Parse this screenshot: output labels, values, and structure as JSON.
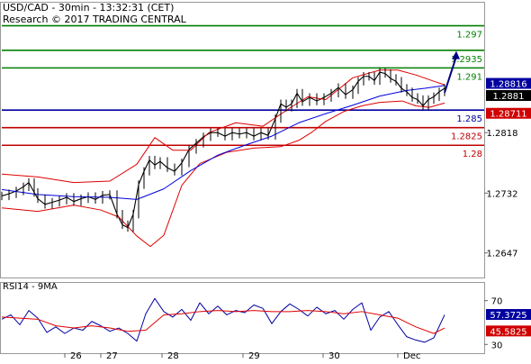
{
  "header": {
    "title": "USD/CAD - 30min - 13:32:31 (CET)",
    "credit": "Research © 2017 TRADING CENTRAL"
  },
  "rsi_label": "RSI14 - 9MA",
  "colors": {
    "resistance": "#008000",
    "pivot": "#0000a0",
    "support": "#c00000",
    "price": "#000000",
    "bollinger": "#e00000",
    "moving_average": "#0000e0",
    "forecast_arrow": "#000080",
    "rsi": "#0000a0",
    "rsi_ma": "#e00000",
    "label_bg_dark": "#000000",
    "label_bg_blue": "#0000a0",
    "label_bg_red": "#d00000"
  },
  "chart_data": [
    {
      "type": "line",
      "title": "USD/CAD - 30min - 13:32:31 (CET)",
      "x_tick_labels": [
        "26",
        "27",
        "28",
        "29",
        "30",
        "Dec"
      ],
      "y_tick_labels": [
        "1.2818",
        "1.2732",
        "1.2647"
      ],
      "ylim": [
        1.2612,
        1.3004
      ],
      "grid": false,
      "levels": [
        {
          "value": 1.297,
          "label": "1.297",
          "kind": "resistance"
        },
        {
          "value": 1.2935,
          "label": "1.2935",
          "kind": "resistance"
        },
        {
          "value": 1.291,
          "label": "1.291",
          "kind": "resistance"
        },
        {
          "value": 1.285,
          "label": "1.285",
          "kind": "pivot"
        },
        {
          "value": 1.2825,
          "label": "1.2825",
          "kind": "support"
        },
        {
          "value": 1.28,
          "label": "1.28",
          "kind": "support"
        }
      ],
      "price_tags": [
        {
          "value": 1.28816,
          "label": "1.28816",
          "style": "blue"
        },
        {
          "value": 1.2881,
          "label": "1.2881",
          "style": "dark"
        },
        {
          "value": 1.28711,
          "label": "1.28711",
          "style": "red"
        }
      ],
      "series": [
        {
          "role": "price",
          "x": [
            0,
            8,
            16,
            24,
            30,
            36,
            40,
            48,
            56,
            64,
            72,
            80,
            88,
            96,
            104,
            112,
            120,
            128,
            134,
            140,
            146,
            152,
            158,
            164,
            170,
            176,
            184,
            192,
            200,
            208,
            216,
            224,
            232,
            240,
            248,
            256,
            264,
            272,
            280,
            288,
            296,
            304,
            310,
            316,
            322,
            328,
            334,
            342,
            350,
            358,
            366,
            374,
            382,
            390,
            396,
            402,
            408,
            414,
            420,
            426,
            432,
            438,
            444,
            450,
            456,
            462,
            468,
            474,
            480,
            486,
            492
          ],
          "y": [
            1.2728,
            1.2731,
            1.2735,
            1.2741,
            1.2747,
            1.2733,
            1.2724,
            1.2716,
            1.2719,
            1.2722,
            1.2726,
            1.272,
            1.2724,
            1.2727,
            1.2723,
            1.2729,
            1.273,
            1.2702,
            1.2687,
            1.2683,
            1.2702,
            1.2744,
            1.2763,
            1.2779,
            1.2772,
            1.2777,
            1.2768,
            1.2763,
            1.2775,
            1.2794,
            1.2803,
            1.2812,
            1.2818,
            1.2818,
            1.2813,
            1.2818,
            1.2816,
            1.2818,
            1.2813,
            1.2818,
            1.2814,
            1.2838,
            1.2859,
            1.2854,
            1.2859,
            1.2874,
            1.2862,
            1.2868,
            1.2863,
            1.2868,
            1.2874,
            1.2882,
            1.2872,
            1.2879,
            1.2891,
            1.2898,
            1.2898,
            1.2892,
            1.2904,
            1.2902,
            1.2895,
            1.2891,
            1.2881,
            1.2876,
            1.2868,
            1.2865,
            1.2856,
            1.2865,
            1.2869,
            1.2876,
            1.2881
          ]
        },
        {
          "role": "bollinger_upper",
          "x": [
            0,
            40,
            80,
            120,
            150,
            170,
            190,
            210,
            230,
            260,
            290,
            320,
            340,
            360,
            390,
            420,
            440,
            460,
            480,
            492
          ],
          "y": [
            1.2759,
            1.2755,
            1.2747,
            1.2749,
            1.2773,
            1.2811,
            1.2793,
            1.2793,
            1.2818,
            1.2832,
            1.2827,
            1.2853,
            1.2869,
            1.2865,
            1.2896,
            1.2907,
            1.2907,
            1.29,
            1.2891,
            1.2886
          ]
        },
        {
          "role": "bollinger_lower",
          "x": [
            0,
            40,
            80,
            110,
            130,
            150,
            165,
            180,
            200,
            220,
            250,
            280,
            310,
            330,
            345,
            360,
            380,
            400,
            420,
            445,
            460,
            475,
            492
          ],
          "y": [
            1.2711,
            1.2706,
            1.2715,
            1.2708,
            1.2698,
            1.2671,
            1.2656,
            1.2672,
            1.2743,
            1.2774,
            1.279,
            1.2796,
            1.2798,
            1.2807,
            1.2819,
            1.2834,
            1.2848,
            1.2856,
            1.2861,
            1.2863,
            1.2856,
            1.2854,
            1.286
          ]
        },
        {
          "role": "moving_average",
          "x": [
            0,
            40,
            80,
            120,
            150,
            180,
            210,
            240,
            270,
            300,
            330,
            360,
            390,
            420,
            450,
            470,
            492
          ],
          "y": [
            1.2737,
            1.273,
            1.2727,
            1.2726,
            1.2723,
            1.2738,
            1.2764,
            1.2786,
            1.28,
            1.2813,
            1.2832,
            1.2845,
            1.2857,
            1.287,
            1.2878,
            1.2881,
            1.2885
          ]
        }
      ],
      "forecast": {
        "from": [
          492,
          1.2875
        ],
        "to": [
          505,
          1.2934
        ]
      }
    },
    {
      "type": "line",
      "title": "RSI14 - 9MA",
      "y_tick_labels": [
        "70",
        "30"
      ],
      "ylim": [
        22,
        87
      ],
      "grid": false,
      "values_tags": [
        {
          "value": 57.3725,
          "label": "57.3725",
          "style": "blue"
        },
        {
          "value": 45.5825,
          "label": "45.5825",
          "style": "red"
        }
      ],
      "series": [
        {
          "role": "rsi",
          "x": [
            0,
            10,
            20,
            30,
            40,
            50,
            60,
            70,
            80,
            90,
            100,
            110,
            120,
            130,
            140,
            150,
            160,
            170,
            180,
            190,
            200,
            210,
            220,
            230,
            240,
            250,
            260,
            270,
            280,
            290,
            300,
            310,
            320,
            330,
            340,
            350,
            360,
            370,
            380,
            390,
            400,
            410,
            420,
            430,
            440,
            450,
            460,
            470,
            480,
            492
          ],
          "y": [
            53,
            57,
            48,
            61,
            54,
            41,
            46,
            40,
            45,
            43,
            51,
            47,
            42,
            45,
            40,
            33,
            58,
            72,
            60,
            55,
            62,
            52,
            68,
            58,
            65,
            57,
            61,
            59,
            66,
            63,
            49,
            60,
            67,
            62,
            56,
            64,
            58,
            61,
            53,
            62,
            68,
            43,
            55,
            60,
            48,
            37,
            34,
            32,
            36,
            57
          ]
        },
        {
          "role": "rsi_ma",
          "x": [
            0,
            20,
            40,
            60,
            80,
            100,
            120,
            140,
            160,
            180,
            200,
            220,
            240,
            260,
            280,
            300,
            320,
            340,
            360,
            380,
            400,
            420,
            440,
            460,
            480,
            492
          ],
          "y": [
            55,
            54,
            53,
            47,
            45,
            47,
            45,
            42,
            43,
            57,
            58,
            60,
            61,
            60,
            61,
            60,
            60,
            61,
            60,
            58,
            60,
            57,
            54,
            46,
            40,
            45
          ]
        }
      ]
    }
  ]
}
